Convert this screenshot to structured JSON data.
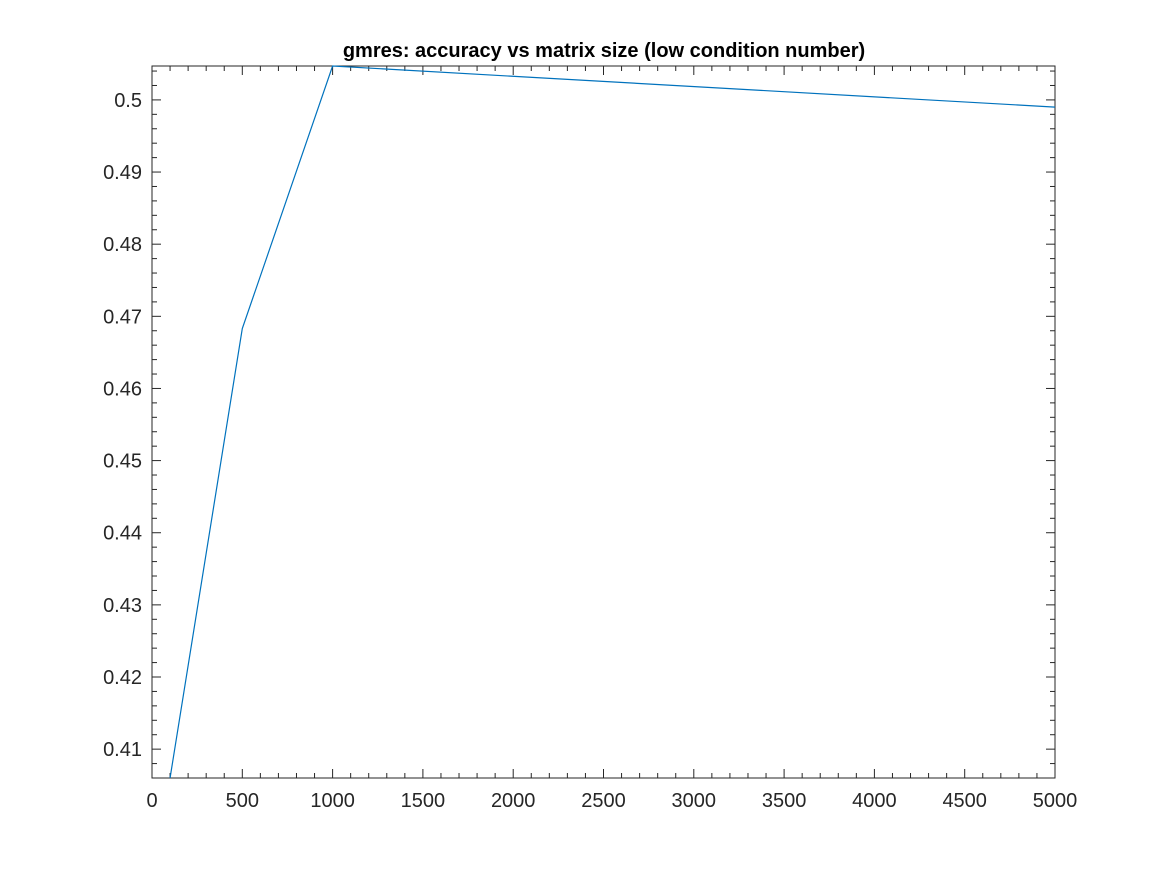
{
  "chart_data": {
    "type": "line",
    "title": "gmres: accuracy vs matrix size (low condition number)",
    "xlabel": "",
    "ylabel": "",
    "xlim": [
      0,
      5000
    ],
    "ylim": [
      0.406,
      0.5047
    ],
    "x_ticks": [
      0,
      500,
      1000,
      1500,
      2000,
      2500,
      3000,
      3500,
      4000,
      4500,
      5000
    ],
    "y_ticks": [
      0.41,
      0.42,
      0.43,
      0.44,
      0.45,
      0.46,
      0.47,
      0.48,
      0.49,
      0.5
    ],
    "x_tick_labels": [
      "0",
      "500",
      "1000",
      "1500",
      "2000",
      "2500",
      "3000",
      "3500",
      "4000",
      "4500",
      "5000"
    ],
    "y_tick_labels": [
      "0.41",
      "0.42",
      "0.43",
      "0.44",
      "0.45",
      "0.46",
      "0.47",
      "0.48",
      "0.49",
      "0.5"
    ],
    "grid": false,
    "box": true,
    "series": [
      {
        "color": "#0072BD",
        "x": [
          100,
          500,
          1000,
          5000
        ],
        "y": [
          0.406,
          0.4683,
          0.5047,
          0.499
        ]
      }
    ]
  }
}
